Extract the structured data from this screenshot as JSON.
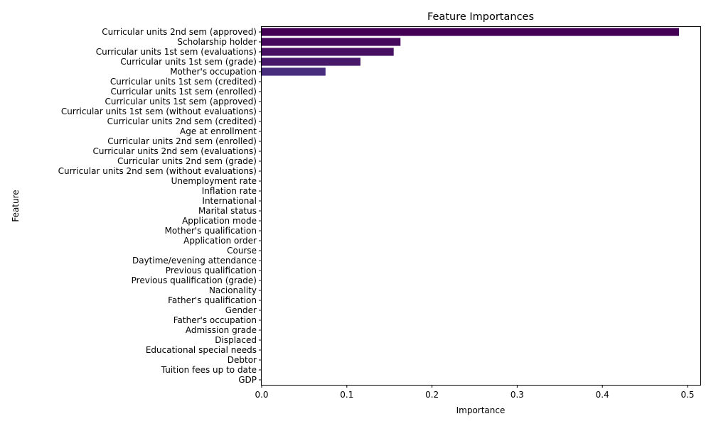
{
  "chart_data": {
    "type": "bar",
    "orientation": "horizontal",
    "title": "Feature Importances",
    "xlabel": "Importance",
    "ylabel": "Feature",
    "xlim": [
      0,
      0.515
    ],
    "xticks": [
      0.0,
      0.1,
      0.2,
      0.3,
      0.4,
      0.5
    ],
    "xtick_labels": [
      "0.0",
      "0.1",
      "0.2",
      "0.3",
      "0.4",
      "0.5"
    ],
    "grid": false,
    "palette": "viridis",
    "categories": [
      "Curricular units 2nd sem (approved)",
      "Scholarship holder",
      "Curricular units 1st sem (evaluations)",
      "Curricular units 1st sem (grade)",
      "Mother's occupation",
      "Curricular units 1st sem (credited)",
      "Curricular units 1st sem (enrolled)",
      "Curricular units 1st sem (approved)",
      "Curricular units 1st sem (without evaluations)",
      "Curricular units 2nd sem (credited)",
      "Age at enrollment",
      "Curricular units 2nd sem (enrolled)",
      "Curricular units 2nd sem (evaluations)",
      "Curricular units 2nd sem (grade)",
      "Curricular units 2nd sem (without evaluations)",
      "Unemployment rate",
      "Inflation rate",
      "International",
      "Marital status",
      "Application mode",
      "Mother's qualification",
      "Application order",
      "Course",
      "Daytime/evening attendance\t",
      "Previous qualification",
      "Previous qualification (grade)",
      "Nacionality",
      "Father's qualification",
      "Gender",
      "Father's occupation",
      "Admission grade",
      "Displaced",
      "Educational special needs",
      "Debtor",
      "Tuition fees up to date",
      "GDP"
    ],
    "values": [
      0.49,
      0.163,
      0.155,
      0.116,
      0.075,
      0,
      0,
      0,
      0,
      0,
      0,
      0,
      0,
      0,
      0,
      0,
      0,
      0,
      0,
      0,
      0,
      0,
      0,
      0,
      0,
      0,
      0,
      0,
      0,
      0,
      0,
      0,
      0,
      0,
      0,
      0
    ],
    "colors": [
      "#440154",
      "#46085c",
      "#471063",
      "#48186a",
      "#472d7b"
    ]
  }
}
